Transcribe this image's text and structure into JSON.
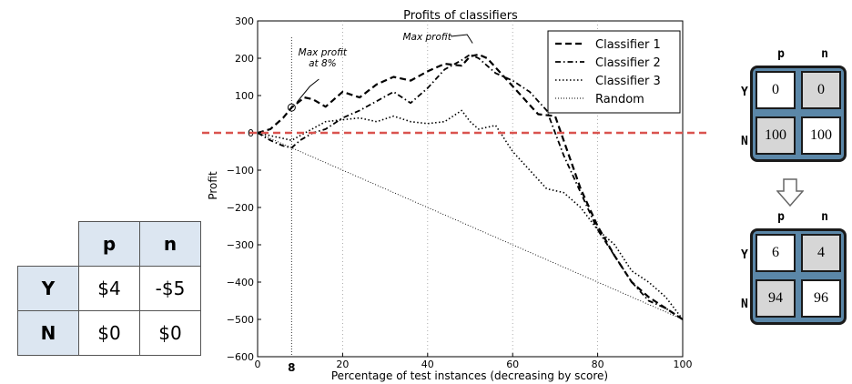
{
  "payoff_table": {
    "col_headers": [
      "p",
      "n"
    ],
    "rows": [
      {
        "label": "Y",
        "values": [
          "$4",
          "-$5"
        ]
      },
      {
        "label": "N",
        "values": [
          "$0",
          "$0"
        ]
      }
    ]
  },
  "chart_data": {
    "type": "line",
    "title": "Profits of classifiers",
    "xlabel": "Percentage of test instances (decreasing by score)",
    "ylabel": "Profit",
    "xlim": [
      0,
      100
    ],
    "ylim": [
      -600,
      300
    ],
    "xticks": [
      0,
      20,
      40,
      60,
      80,
      100
    ],
    "yticks": [
      -600,
      -500,
      -400,
      -300,
      -200,
      -100,
      0,
      100,
      200,
      300
    ],
    "grid": "x-only dotted",
    "zero_line_color": "#d9534f",
    "marker_x_label": "8",
    "legend_position": "top-right",
    "annotations": [
      {
        "text": "Max profit\nat 8%",
        "x": 8,
        "y": 68
      },
      {
        "text": "Max profit",
        "x": 48,
        "y": 250
      }
    ],
    "series": [
      {
        "name": "Classifier 1",
        "style": "dashed",
        "x": [
          0,
          3,
          6,
          8,
          11,
          13,
          16,
          20,
          24,
          28,
          32,
          36,
          40,
          44,
          48,
          50,
          52,
          54,
          58,
          62,
          66,
          70,
          72,
          76,
          80,
          84,
          88,
          92,
          96,
          100
        ],
        "y": [
          0,
          10,
          40,
          68,
          95,
          90,
          70,
          110,
          95,
          130,
          150,
          140,
          165,
          185,
          180,
          205,
          210,
          200,
          150,
          100,
          50,
          45,
          -20,
          -150,
          -250,
          -330,
          -400,
          -440,
          -470,
          -500
        ]
      },
      {
        "name": "Classifier 2",
        "style": "dashdot",
        "x": [
          0,
          3,
          6,
          8,
          10,
          13,
          16,
          20,
          24,
          28,
          32,
          36,
          40,
          44,
          48,
          50,
          52,
          56,
          60,
          64,
          68,
          72,
          76,
          80,
          84,
          88,
          92,
          96,
          100
        ],
        "y": [
          0,
          -20,
          -35,
          -40,
          -20,
          0,
          10,
          40,
          60,
          85,
          110,
          80,
          120,
          170,
          195,
          210,
          200,
          160,
          140,
          110,
          60,
          -60,
          -160,
          -260,
          -330,
          -400,
          -450,
          -470,
          -500
        ]
      },
      {
        "name": "Classifier 3",
        "style": "dotted",
        "x": [
          0,
          4,
          8,
          12,
          16,
          20,
          24,
          28,
          32,
          36,
          40,
          44,
          48,
          50,
          52,
          56,
          60,
          64,
          68,
          72,
          76,
          80,
          84,
          88,
          92,
          96,
          100
        ],
        "y": [
          0,
          -10,
          -20,
          5,
          30,
          35,
          40,
          30,
          45,
          30,
          25,
          30,
          60,
          30,
          10,
          20,
          -50,
          -100,
          -150,
          -160,
          -200,
          -260,
          -300,
          -370,
          -400,
          -440,
          -500
        ]
      },
      {
        "name": "Random",
        "style": "fine-dotted",
        "x": [
          0,
          100
        ],
        "y": [
          0,
          -500
        ]
      }
    ]
  },
  "confusion_top": {
    "col_headers": [
      "p",
      "n"
    ],
    "row_labels": [
      "Y",
      "N"
    ],
    "cells": [
      [
        "0",
        "0"
      ],
      [
        "100",
        "100"
      ]
    ]
  },
  "confusion_bottom": {
    "col_headers": [
      "p",
      "n"
    ],
    "row_labels": [
      "Y",
      "N"
    ],
    "cells": [
      [
        "6",
        "4"
      ],
      [
        "94",
        "96"
      ]
    ]
  },
  "arrow_icon": "down-arrow-icon"
}
